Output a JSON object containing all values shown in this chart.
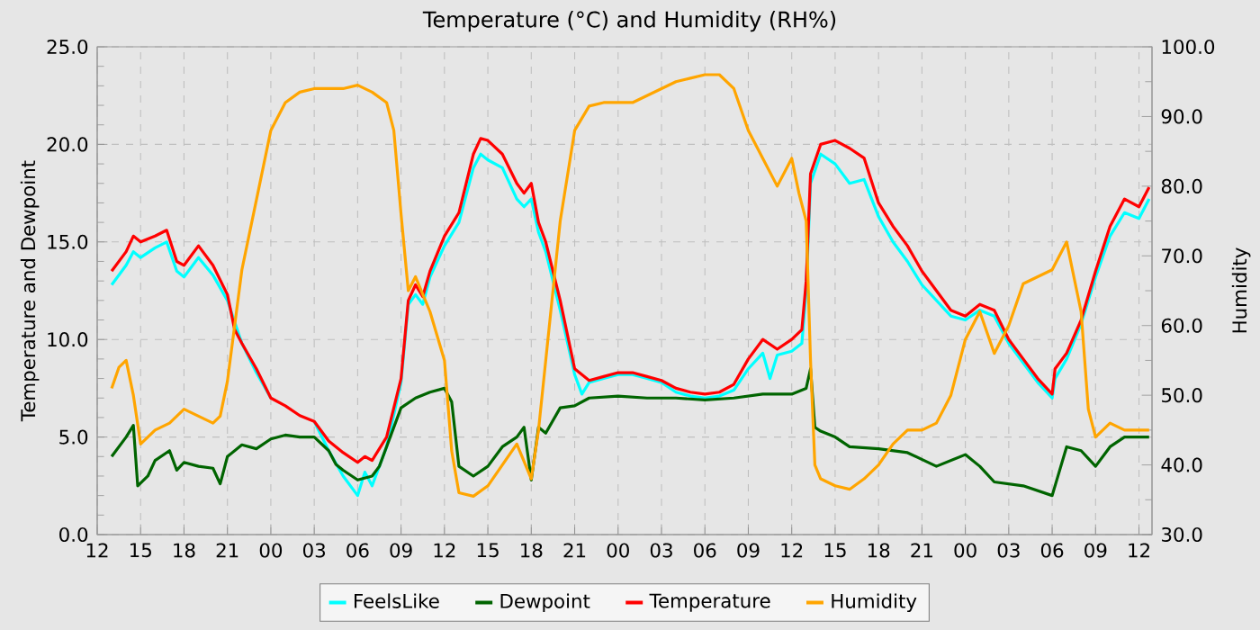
{
  "chart_data": {
    "type": "line",
    "title": "Temperature (°C) and Humidity (RH%)",
    "ylabel": "Temperature and Dewpoint",
    "y2label": "Humidity",
    "xlim": [
      12,
      84.9
    ],
    "xticks": [
      {
        "value": 12,
        "label": "12"
      },
      {
        "value": 15,
        "label": "15"
      },
      {
        "value": 18,
        "label": "18"
      },
      {
        "value": 21,
        "label": "21"
      },
      {
        "value": 24,
        "label": "00"
      },
      {
        "value": 27,
        "label": "03"
      },
      {
        "value": 30,
        "label": "06"
      },
      {
        "value": 33,
        "label": "09"
      },
      {
        "value": 36,
        "label": "12"
      },
      {
        "value": 39,
        "label": "15"
      },
      {
        "value": 42,
        "label": "18"
      },
      {
        "value": 45,
        "label": "21"
      },
      {
        "value": 48,
        "label": "00"
      },
      {
        "value": 51,
        "label": "03"
      },
      {
        "value": 54,
        "label": "06"
      },
      {
        "value": 57,
        "label": "09"
      },
      {
        "value": 60,
        "label": "12"
      },
      {
        "value": 63,
        "label": "15"
      },
      {
        "value": 66,
        "label": "18"
      },
      {
        "value": 69,
        "label": "21"
      },
      {
        "value": 72,
        "label": "00"
      },
      {
        "value": 75,
        "label": "03"
      },
      {
        "value": 78,
        "label": "06"
      },
      {
        "value": 81,
        "label": "09"
      },
      {
        "value": 84,
        "label": "12"
      }
    ],
    "ylim": [
      0,
      25
    ],
    "yticks": [
      {
        "value": 0,
        "label": "0.0"
      },
      {
        "value": 5,
        "label": "5.0"
      },
      {
        "value": 10,
        "label": "10.0"
      },
      {
        "value": 15,
        "label": "15.0"
      },
      {
        "value": 20,
        "label": "20.0"
      },
      {
        "value": 25,
        "label": "25.0"
      }
    ],
    "y2lim": [
      30,
      100
    ],
    "y2ticks": [
      {
        "value": 30,
        "label": "30.0"
      },
      {
        "value": 40,
        "label": "40.0"
      },
      {
        "value": 50,
        "label": "50.0"
      },
      {
        "value": 60,
        "label": "60.0"
      },
      {
        "value": 70,
        "label": "70.0"
      },
      {
        "value": 80,
        "label": "80.0"
      },
      {
        "value": 90,
        "label": "90.0"
      },
      {
        "value": 100,
        "label": "100.0"
      }
    ],
    "grid": true,
    "legend": "bottom",
    "marker": "none",
    "line_style": "solid",
    "series": [
      {
        "name": "FeelsLike",
        "color": "#00ffff",
        "x": [
          13,
          14,
          14.5,
          15,
          16,
          16.8,
          17.5,
          18,
          19,
          20,
          21,
          21.5,
          22,
          23,
          24,
          25,
          26,
          27,
          28,
          29,
          30,
          30.5,
          31,
          32,
          33,
          33.5,
          34,
          34.5,
          35,
          36,
          37,
          38,
          38.5,
          39,
          40,
          41,
          41.5,
          42,
          42.5,
          43,
          44,
          45,
          45.5,
          46,
          47,
          48,
          49,
          50,
          51,
          52,
          53,
          54,
          55,
          56,
          57,
          58,
          58.5,
          59,
          60,
          60.7,
          61,
          61.3,
          62,
          63,
          64,
          65,
          66,
          67,
          68,
          69,
          70,
          71,
          72,
          73,
          74,
          75,
          76,
          77,
          78,
          78.2,
          79,
          80,
          81,
          82,
          83,
          84,
          84.7
        ],
        "values": [
          12.8,
          13.8,
          14.5,
          14.2,
          14.7,
          15.0,
          13.5,
          13.2,
          14.2,
          13.3,
          12.0,
          null,
          9.8,
          8.3,
          7.0,
          null,
          null,
          5.8,
          4.3,
          3.0,
          2.0,
          3.2,
          2.5,
          4.5,
          7.8,
          11.8,
          12.3,
          11.8,
          13.2,
          14.8,
          16.0,
          18.8,
          19.5,
          19.2,
          18.8,
          17.2,
          16.8,
          17.2,
          15.5,
          14.5,
          11.5,
          8.2,
          7.2,
          7.8,
          8.0,
          8.2,
          8.2,
          8.0,
          7.8,
          7.3,
          7.1,
          7.0,
          7.1,
          7.4,
          8.5,
          9.3,
          8.0,
          9.2,
          9.4,
          9.8,
          12.5,
          18.0,
          19.5,
          19.0,
          18.0,
          18.2,
          16.3,
          15.0,
          14.0,
          12.8,
          12.0,
          11.2,
          11.0,
          11.5,
          11.2,
          9.8,
          8.8,
          7.8,
          7.0,
          8.0,
          9.0,
          10.8,
          13.2,
          15.3,
          16.5,
          16.2,
          17.2
        ]
      },
      {
        "name": "Dewpoint",
        "color": "#006400",
        "x": [
          13,
          14,
          14.5,
          14.8,
          15.5,
          16,
          17,
          17.5,
          18,
          19,
          20,
          20.5,
          21,
          22,
          23,
          24,
          25,
          26,
          27,
          28,
          28.5,
          29,
          30,
          31,
          31.5,
          33,
          34,
          35,
          36,
          36.5,
          37,
          38,
          39,
          40,
          41,
          41.5,
          42,
          42.5,
          43,
          44,
          45,
          46,
          48,
          50,
          52,
          54,
          56,
          58,
          60,
          61,
          61.3,
          61.6,
          62,
          63,
          64,
          66,
          68,
          70,
          72,
          73,
          74,
          76,
          78,
          79,
          80,
          81,
          82,
          83,
          84.7
        ],
        "values": [
          4.0,
          5.0,
          5.6,
          2.5,
          3.0,
          3.8,
          4.3,
          3.3,
          3.7,
          3.5,
          3.4,
          2.6,
          4.0,
          4.6,
          4.4,
          4.9,
          5.1,
          5.0,
          5.0,
          4.3,
          3.6,
          3.3,
          2.8,
          3.0,
          3.5,
          6.5,
          7.0,
          7.3,
          7.5,
          6.8,
          3.5,
          3.0,
          3.5,
          4.5,
          5.0,
          5.5,
          2.8,
          5.5,
          5.2,
          6.5,
          6.6,
          7.0,
          7.1,
          7.0,
          7.0,
          6.9,
          7.0,
          7.2,
          7.2,
          7.5,
          8.5,
          5.5,
          5.3,
          5.0,
          4.5,
          4.4,
          4.2,
          3.5,
          4.1,
          3.5,
          2.7,
          2.5,
          2.0,
          4.5,
          4.3,
          3.5,
          4.5,
          5.0,
          5.0
        ]
      },
      {
        "name": "Temperature",
        "color": "#ff0000",
        "x": [
          13,
          14,
          14.5,
          15,
          16,
          16.8,
          17.5,
          18,
          19,
          20,
          21,
          21.5,
          22,
          23,
          24,
          25,
          26,
          27,
          28,
          29,
          30,
          30.5,
          31,
          32,
          33,
          33.5,
          34,
          34.5,
          35,
          36,
          37,
          38,
          38.5,
          39,
          40,
          41,
          41.5,
          42,
          42.5,
          43,
          44,
          45,
          46,
          47,
          48,
          49,
          50,
          51,
          52,
          53,
          54,
          55,
          56,
          57,
          58,
          59,
          60,
          60.7,
          61,
          61.3,
          62,
          63,
          64,
          65,
          66,
          67,
          68,
          69,
          70,
          71,
          72,
          73,
          74,
          75,
          76,
          77,
          78,
          78.2,
          79,
          80,
          81,
          82,
          83,
          84,
          84.7
        ],
        "values": [
          13.5,
          14.5,
          15.3,
          15.0,
          15.3,
          15.6,
          14.0,
          13.8,
          14.8,
          13.8,
          12.3,
          10.5,
          9.8,
          8.5,
          7.0,
          6.6,
          6.1,
          5.8,
          4.8,
          4.2,
          3.7,
          4.0,
          3.8,
          5.0,
          8.0,
          12.0,
          12.8,
          12.2,
          13.5,
          15.3,
          16.5,
          19.5,
          20.3,
          20.2,
          19.5,
          18.0,
          17.5,
          18.0,
          16.0,
          15.0,
          12.0,
          8.5,
          7.9,
          8.1,
          8.3,
          8.3,
          8.1,
          7.9,
          7.5,
          7.3,
          7.2,
          7.3,
          7.7,
          9.0,
          10.0,
          9.5,
          10.0,
          10.5,
          13.0,
          18.5,
          20.0,
          20.2,
          19.8,
          19.3,
          17.0,
          15.8,
          14.8,
          13.5,
          12.5,
          11.5,
          11.2,
          11.8,
          11.5,
          10.0,
          9.0,
          8.0,
          7.2,
          8.5,
          9.3,
          11.0,
          13.5,
          15.8,
          17.2,
          16.8,
          17.8
        ]
      },
      {
        "name": "Humidity",
        "color": "#ffa500",
        "axis": "y2",
        "x": [
          13,
          13.5,
          14,
          14.5,
          15,
          16,
          17,
          18,
          19,
          20,
          20.5,
          21,
          22,
          23,
          24,
          25,
          26,
          27,
          29,
          30,
          31,
          32,
          32.5,
          33,
          33.5,
          34,
          35,
          36,
          36.5,
          37,
          38,
          39,
          40,
          41,
          42,
          42.5,
          43,
          44,
          45,
          46,
          47,
          48,
          49,
          50,
          51,
          52,
          53,
          54,
          55,
          56,
          57,
          58,
          59,
          60,
          60.5,
          61,
          61.3,
          61.6,
          62,
          63,
          64,
          65,
          66,
          67,
          68,
          69,
          70,
          71,
          72,
          73,
          74,
          75,
          76,
          77,
          78,
          79,
          80,
          80.5,
          81,
          82,
          83,
          84.7
        ],
        "values": [
          51,
          54,
          55,
          50,
          43,
          45,
          46,
          48,
          47,
          46,
          47,
          52,
          68,
          78,
          88,
          92,
          93.5,
          94,
          94,
          94.5,
          93.5,
          92,
          88,
          76,
          65,
          67,
          62,
          55,
          42,
          36,
          35.5,
          37,
          40,
          43,
          38,
          45,
          55,
          75,
          88,
          91.5,
          92,
          92,
          92,
          93,
          94,
          95,
          95.5,
          96,
          96,
          94,
          88,
          84,
          80,
          84,
          79,
          75,
          55,
          40,
          38,
          37,
          36.5,
          38,
          40,
          43,
          45,
          45,
          46,
          50,
          58,
          62,
          56,
          60,
          66,
          67,
          68,
          72,
          62,
          48,
          44,
          46,
          45,
          45
        ]
      }
    ]
  }
}
